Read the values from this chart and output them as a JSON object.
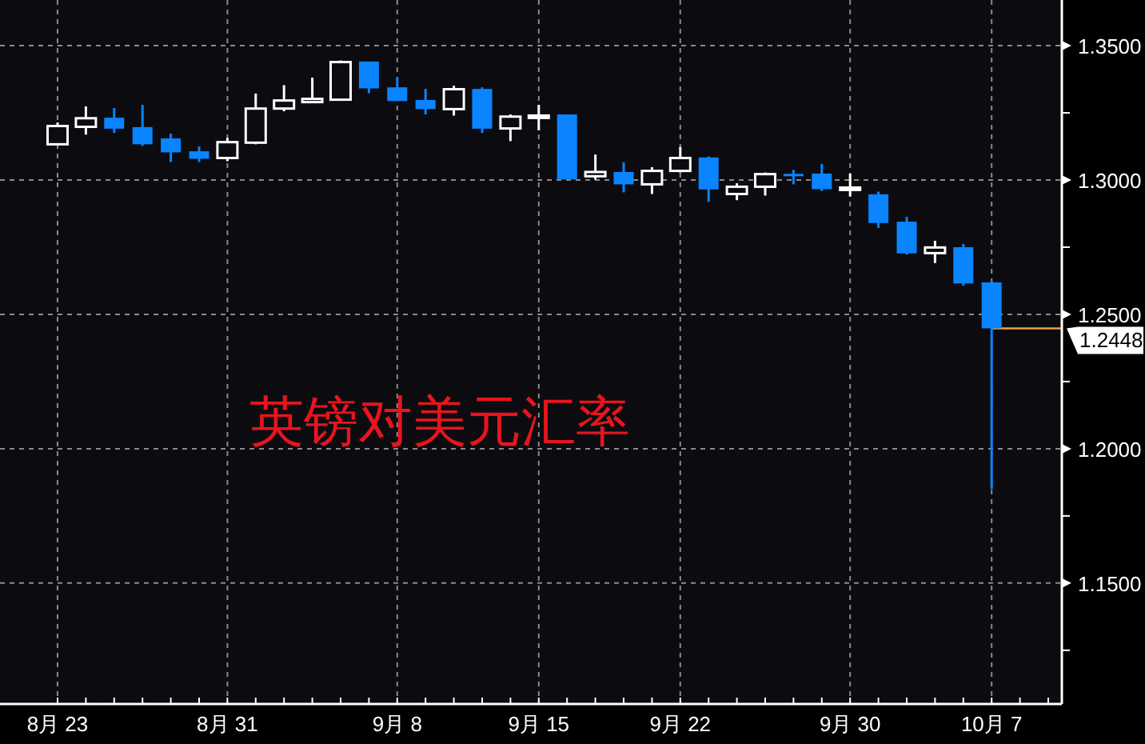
{
  "chart_data": {
    "type": "candlestick",
    "title": "英镑对美元汇率",
    "categories": [
      "8月 23",
      null,
      null,
      null,
      null,
      null,
      "8月 31",
      null,
      null,
      null,
      null,
      null,
      "9月 8",
      null,
      null,
      null,
      null,
      "9月 15",
      null,
      null,
      null,
      null,
      "9月 22",
      null,
      null,
      null,
      null,
      null,
      "9月 30",
      null,
      null,
      null,
      null,
      "10月 7",
      null,
      null
    ],
    "ohlc": [
      [
        1.3133,
        1.3214,
        1.3133,
        1.3201
      ],
      [
        1.3198,
        1.3274,
        1.3169,
        1.323
      ],
      [
        1.3232,
        1.3268,
        1.3175,
        1.3191
      ],
      [
        1.3197,
        1.328,
        1.3127,
        1.3133
      ],
      [
        1.3155,
        1.3173,
        1.3067,
        1.3103
      ],
      [
        1.3107,
        1.3125,
        1.3067,
        1.3079
      ],
      [
        1.3082,
        1.3157,
        1.307,
        1.3141
      ],
      [
        1.3139,
        1.3322,
        1.3133,
        1.3266
      ],
      [
        1.3266,
        1.3353,
        1.3256,
        1.3296
      ],
      [
        1.329,
        1.3381,
        1.329,
        1.3302
      ],
      [
        1.3299,
        1.3445,
        1.3299,
        1.3439
      ],
      [
        1.3441,
        1.3441,
        1.3323,
        1.3341
      ],
      [
        1.3345,
        1.3381,
        1.3294,
        1.3294
      ],
      [
        1.3298,
        1.3339,
        1.3244,
        1.3264
      ],
      [
        1.3264,
        1.3351,
        1.324,
        1.3338
      ],
      [
        1.3339,
        1.3345,
        1.3175,
        1.3191
      ],
      [
        1.3192,
        1.3244,
        1.3145,
        1.3236
      ],
      [
        1.324,
        1.328,
        1.3185,
        1.324
      ],
      [
        1.3244,
        1.3244,
        1.3002,
        1.3002
      ],
      [
        1.3014,
        1.3095,
        1.3002,
        1.303
      ],
      [
        1.303,
        1.3066,
        1.2954,
        1.2984
      ],
      [
        1.2984,
        1.3048,
        1.2948,
        1.3034
      ],
      [
        1.3034,
        1.3123,
        1.3028,
        1.3082
      ],
      [
        1.3084,
        1.3088,
        1.2919,
        1.2965
      ],
      [
        1.2948,
        1.2988,
        1.2925,
        1.2975
      ],
      [
        1.2975,
        1.3028,
        1.2942,
        1.3022
      ],
      [
        1.3023,
        1.3038,
        1.2984,
        1.3021
      ],
      [
        1.3024,
        1.306,
        1.2959,
        1.2966
      ],
      [
        1.297,
        1.3024,
        1.2939,
        1.2972
      ],
      [
        1.2947,
        1.2957,
        1.2822,
        1.284
      ],
      [
        1.2845,
        1.2863,
        1.2722,
        1.2727
      ],
      [
        1.2728,
        1.2774,
        1.2691,
        1.2749
      ],
      [
        1.275,
        1.2762,
        1.2607,
        1.2615
      ],
      [
        1.2619,
        1.2624,
        1.185,
        1.2448
      ],
      null,
      null
    ],
    "colors": [
      "#ffffff",
      "#ffffff",
      "#0a84ff",
      "#0a84ff",
      "#0a84ff",
      "#0a84ff",
      "#ffffff",
      "#ffffff",
      "#ffffff",
      "#ffffff",
      "#ffffff",
      "#0a84ff",
      "#0a84ff",
      "#0a84ff",
      "#ffffff",
      "#0a84ff",
      "#ffffff",
      "#ffffff",
      "#0a84ff",
      "#ffffff",
      "#0a84ff",
      "#ffffff",
      "#ffffff",
      "#0a84ff",
      "#ffffff",
      "#ffffff",
      "#0a84ff",
      "#0a84ff",
      "#ffffff",
      "#0a84ff",
      "#0a84ff",
      "#ffffff",
      "#0a84ff",
      "#0a84ff",
      null,
      null
    ],
    "ylim": [
      1.105,
      1.367
    ],
    "yticks": [
      {
        "value": 1.125,
        "label": null
      },
      {
        "value": 1.15,
        "label": "1.1500"
      },
      {
        "value": 1.175,
        "label": null
      },
      {
        "value": 1.2,
        "label": "1.2000"
      },
      {
        "value": 1.225,
        "label": null
      },
      {
        "value": 1.25,
        "label": "1.2500"
      },
      {
        "value": 1.275,
        "label": null
      },
      {
        "value": 1.3,
        "label": "1.3000"
      },
      {
        "value": 1.325,
        "label": null
      },
      {
        "value": 1.35,
        "label": "1.3500"
      }
    ],
    "grid": true,
    "ref_lines": [
      {
        "axis": "y",
        "value": 1.2448,
        "label": "1.2448",
        "color": "#e8a33c"
      }
    ]
  }
}
